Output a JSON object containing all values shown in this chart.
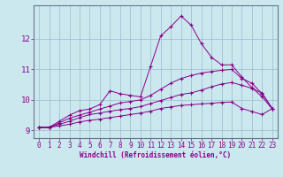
{
  "xlabel": "Windchill (Refroidissement éolien,°C)",
  "background_color": "#cce8ef",
  "line_color": "#880088",
  "grid_color": "#99bbcc",
  "spine_color": "#667788",
  "xlim": [
    -0.5,
    23.5
  ],
  "ylim": [
    8.75,
    13.1
  ],
  "yticks": [
    9,
    10,
    11,
    12
  ],
  "xticks": [
    0,
    1,
    2,
    3,
    4,
    5,
    6,
    7,
    8,
    9,
    10,
    11,
    12,
    13,
    14,
    15,
    16,
    17,
    18,
    19,
    20,
    21,
    22,
    23
  ],
  "tick_fontsize": 5.5,
  "xlabel_fontsize": 5.5,
  "ytick_fontsize": 6.5,
  "lines": [
    {
      "x": [
        0,
        1,
        2,
        3,
        4,
        5,
        6,
        7,
        8,
        9,
        10,
        11,
        12,
        13,
        14,
        15,
        16,
        17,
        18,
        19,
        20,
        21,
        22,
        23
      ],
      "y": [
        9.1,
        9.1,
        9.3,
        9.5,
        9.65,
        9.7,
        9.85,
        10.3,
        10.2,
        10.15,
        10.1,
        11.1,
        12.1,
        12.4,
        12.75,
        12.45,
        11.85,
        11.4,
        11.15,
        11.15,
        10.75,
        10.4,
        10.1,
        9.7
      ]
    },
    {
      "x": [
        0,
        1,
        2,
        3,
        4,
        5,
        6,
        7,
        8,
        9,
        10,
        11,
        12,
        13,
        14,
        15,
        16,
        17,
        18,
        19,
        20,
        21,
        22,
        23
      ],
      "y": [
        9.1,
        9.1,
        9.25,
        9.4,
        9.5,
        9.6,
        9.7,
        9.8,
        9.9,
        9.95,
        10.0,
        10.15,
        10.35,
        10.55,
        10.7,
        10.8,
        10.88,
        10.93,
        10.97,
        11.0,
        10.7,
        10.55,
        10.2,
        9.72
      ]
    },
    {
      "x": [
        0,
        1,
        2,
        3,
        4,
        5,
        6,
        7,
        8,
        9,
        10,
        11,
        12,
        13,
        14,
        15,
        16,
        17,
        18,
        19,
        20,
        21,
        22,
        23
      ],
      "y": [
        9.1,
        9.1,
        9.2,
        9.3,
        9.42,
        9.52,
        9.57,
        9.63,
        9.68,
        9.72,
        9.78,
        9.88,
        9.98,
        10.08,
        10.18,
        10.23,
        10.32,
        10.43,
        10.52,
        10.57,
        10.48,
        10.38,
        10.22,
        9.72
      ]
    },
    {
      "x": [
        0,
        1,
        2,
        3,
        4,
        5,
        6,
        7,
        8,
        9,
        10,
        11,
        12,
        13,
        14,
        15,
        16,
        17,
        18,
        19,
        20,
        21,
        22,
        23
      ],
      "y": [
        9.1,
        9.1,
        9.15,
        9.2,
        9.28,
        9.33,
        9.37,
        9.42,
        9.47,
        9.52,
        9.57,
        9.63,
        9.72,
        9.77,
        9.82,
        9.84,
        9.87,
        9.89,
        9.92,
        9.93,
        9.72,
        9.62,
        9.52,
        9.72
      ]
    }
  ]
}
